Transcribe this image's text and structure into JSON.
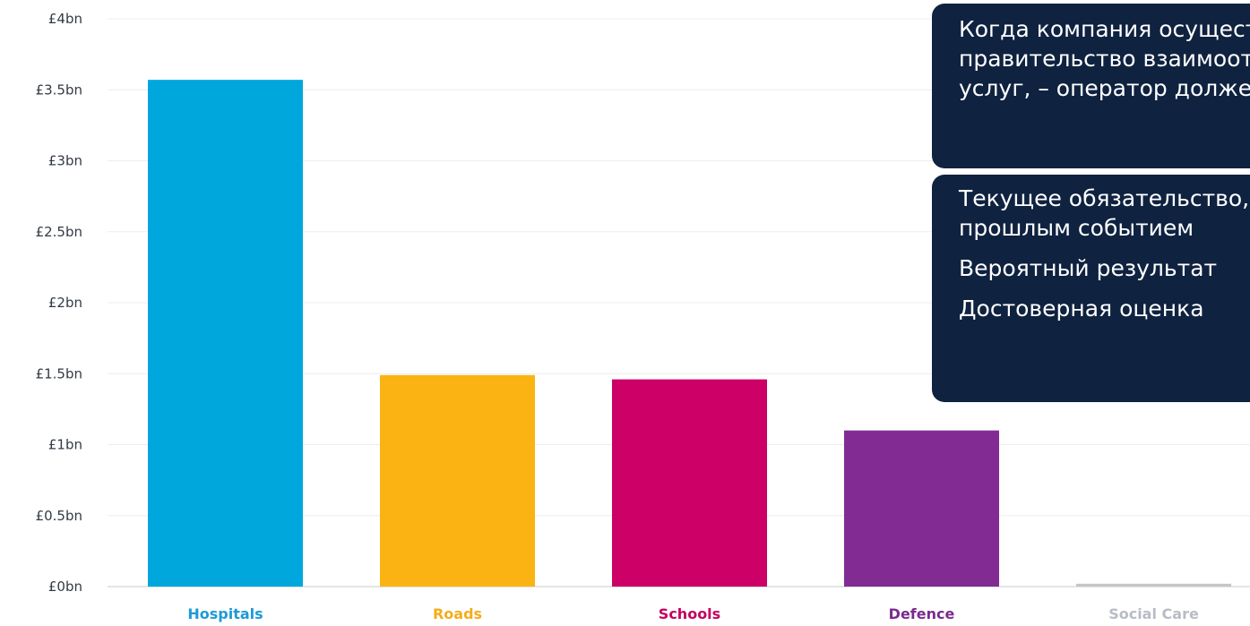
{
  "chart_data": {
    "type": "bar",
    "categories": [
      "Hospitals",
      "Roads",
      "Schools",
      "Defence",
      "Social Care"
    ],
    "values": [
      3.57,
      1.49,
      1.46,
      1.1,
      0.02
    ],
    "colors": [
      "#00a7dc",
      "#fab312",
      "#cc0066",
      "#822c93",
      "#c4c6ca"
    ],
    "label_colors": [
      "#1d9ad6",
      "#f5ac1b",
      "#c4005f",
      "#7a2b8f",
      "#b8bcc4"
    ],
    "yticks": [
      "£0bn",
      "£0.5bn",
      "£1bn",
      "£1.5bn",
      "£2bn",
      "£2.5bn",
      "£3bn",
      "£3.5bn",
      "£4bn"
    ],
    "ylim": [
      0,
      4
    ],
    "grid": true
  },
  "callouts": {
    "first": {
      "lines": [
        "Когда компания осуществляет операцию с",
        "правительство взаимоотношения в сфере",
        "услуг, – оператор должен признать"
      ]
    },
    "second": {
      "lines": [
        "Текущее обязательство, возникшее в связи с",
        "прошлым событием",
        "Вероятный результат",
        "Достоверная оценка"
      ]
    }
  }
}
